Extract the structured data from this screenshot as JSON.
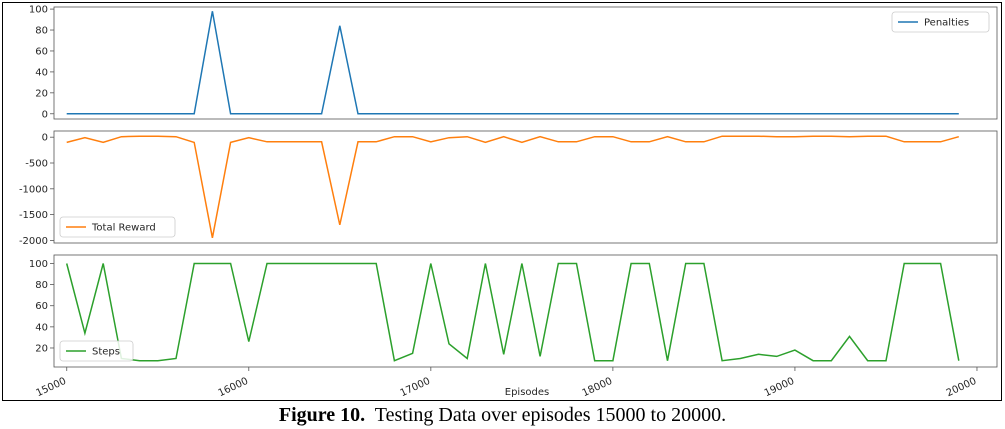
{
  "caption": {
    "label": "Figure 10.",
    "text": "Testing Data over episodes 15000 to 20000."
  },
  "chart_data": {
    "type": "line",
    "xlabel": "Episodes",
    "x_ticks": [
      15000,
      16000,
      17000,
      18000,
      19000,
      20000
    ],
    "xlim": [
      14930,
      20110
    ],
    "x": [
      15000,
      15100,
      15200,
      15300,
      15400,
      15500,
      15600,
      15700,
      15800,
      15900,
      16000,
      16100,
      16200,
      16300,
      16400,
      16500,
      16600,
      16700,
      16800,
      16900,
      17000,
      17100,
      17200,
      17300,
      17400,
      17500,
      17600,
      17700,
      17800,
      17900,
      18000,
      18100,
      18200,
      18300,
      18400,
      18500,
      18600,
      18700,
      18800,
      18900,
      19000,
      19100,
      19200,
      19300,
      19400,
      19500,
      19600,
      19700,
      19800,
      19900
    ],
    "panels": [
      {
        "name": "Penalties",
        "color": "#1f77b4",
        "legend": "top-right",
        "ylim": [
          -5,
          102
        ],
        "y_ticks": [
          0,
          20,
          40,
          60,
          80,
          100
        ],
        "values": [
          0,
          0,
          0,
          0,
          0,
          0,
          0,
          0,
          98,
          0,
          0,
          0,
          0,
          0,
          0,
          84,
          0,
          0,
          0,
          0,
          0,
          0,
          0,
          0,
          0,
          0,
          0,
          0,
          0,
          0,
          0,
          0,
          0,
          0,
          0,
          0,
          0,
          0,
          0,
          0,
          0,
          0,
          0,
          0,
          0,
          0,
          0,
          0,
          0,
          0
        ]
      },
      {
        "name": "Total Reward",
        "color": "#ff7f0e",
        "legend": "bottom-left",
        "ylim": [
          -2050,
          120
        ],
        "y_ticks": [
          0,
          -500,
          -1000,
          -1500,
          -2000
        ],
        "values": [
          -100,
          -10,
          -100,
          10,
          20,
          20,
          10,
          -100,
          -1950,
          -100,
          -10,
          -90,
          -90,
          -90,
          -90,
          -1700,
          -90,
          -90,
          10,
          10,
          -90,
          -10,
          10,
          -100,
          10,
          -100,
          10,
          -90,
          -90,
          10,
          10,
          -90,
          -90,
          10,
          -90,
          -90,
          20,
          20,
          20,
          10,
          10,
          20,
          20,
          10,
          20,
          20,
          -90,
          -90,
          -90,
          10
        ]
      },
      {
        "name": "Steps",
        "color": "#2ca02c",
        "legend": "bottom-left",
        "ylim": [
          2,
          108
        ],
        "y_ticks": [
          20,
          40,
          60,
          80,
          100
        ],
        "values": [
          100,
          34,
          100,
          10,
          8,
          8,
          10,
          100,
          100,
          100,
          26,
          100,
          100,
          100,
          100,
          100,
          100,
          100,
          8,
          15,
          100,
          24,
          10,
          100,
          14,
          100,
          12,
          100,
          100,
          8,
          8,
          100,
          100,
          8,
          100,
          100,
          8,
          10,
          14,
          12,
          18,
          8,
          8,
          31,
          8,
          8,
          100,
          100,
          100,
          8
        ]
      }
    ]
  }
}
